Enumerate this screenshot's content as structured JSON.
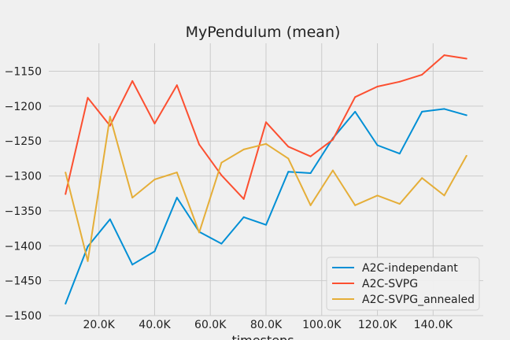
{
  "chart_data": {
    "type": "line",
    "title": "MyPendulum (mean)",
    "xlabel": "timesteps",
    "ylabel": "",
    "xlim": [
      2000,
      158000
    ],
    "ylim": [
      -1500,
      -1110
    ],
    "x_ticks": [
      20000,
      40000,
      60000,
      80000,
      100000,
      120000,
      140000
    ],
    "x_tick_labels": [
      "20.0K",
      "40.0K",
      "60.0K",
      "80.0K",
      "100.0K",
      "120.0K",
      "140.0K"
    ],
    "y_ticks": [
      -1500,
      -1450,
      -1400,
      -1350,
      -1300,
      -1250,
      -1200,
      -1150
    ],
    "y_tick_labels": [
      "−1500",
      "−1450",
      "−1400",
      "−1350",
      "−1300",
      "−1250",
      "−1200",
      "−1150"
    ],
    "grid": true,
    "legend_position": "bottom-right",
    "x": [
      8000,
      16000,
      24000,
      32000,
      40000,
      48000,
      56000,
      64000,
      72000,
      80000,
      88000,
      96000,
      104000,
      112000,
      120000,
      128000,
      136000,
      144000,
      152000
    ],
    "series": [
      {
        "name": "A2C-independant",
        "color": "#008fd5",
        "values": [
          -1483,
          -1401,
          -1362,
          -1427,
          -1408,
          -1331,
          -1380,
          -1397,
          -1359,
          -1370,
          -1294,
          -1296,
          -1246,
          -1208,
          -1256,
          -1268,
          -1208,
          -1204,
          -1213
        ]
      },
      {
        "name": "A2C-SVPG",
        "color": "#fc4f30",
        "values": [
          -1326,
          -1188,
          -1228,
          -1164,
          -1225,
          -1170,
          -1255,
          -1299,
          -1333,
          -1223,
          -1258,
          -1272,
          -1248,
          -1187,
          -1172,
          -1165,
          -1155,
          -1127,
          -1132
        ]
      },
      {
        "name": "A2C-SVPG_annealed",
        "color": "#e5ae38",
        "values": [
          -1295,
          -1422,
          -1215,
          -1331,
          -1305,
          -1295,
          -1381,
          -1281,
          -1262,
          -1254,
          -1275,
          -1342,
          -1292,
          -1342,
          -1328,
          -1340,
          -1303,
          -1328,
          -1271
        ]
      }
    ]
  }
}
